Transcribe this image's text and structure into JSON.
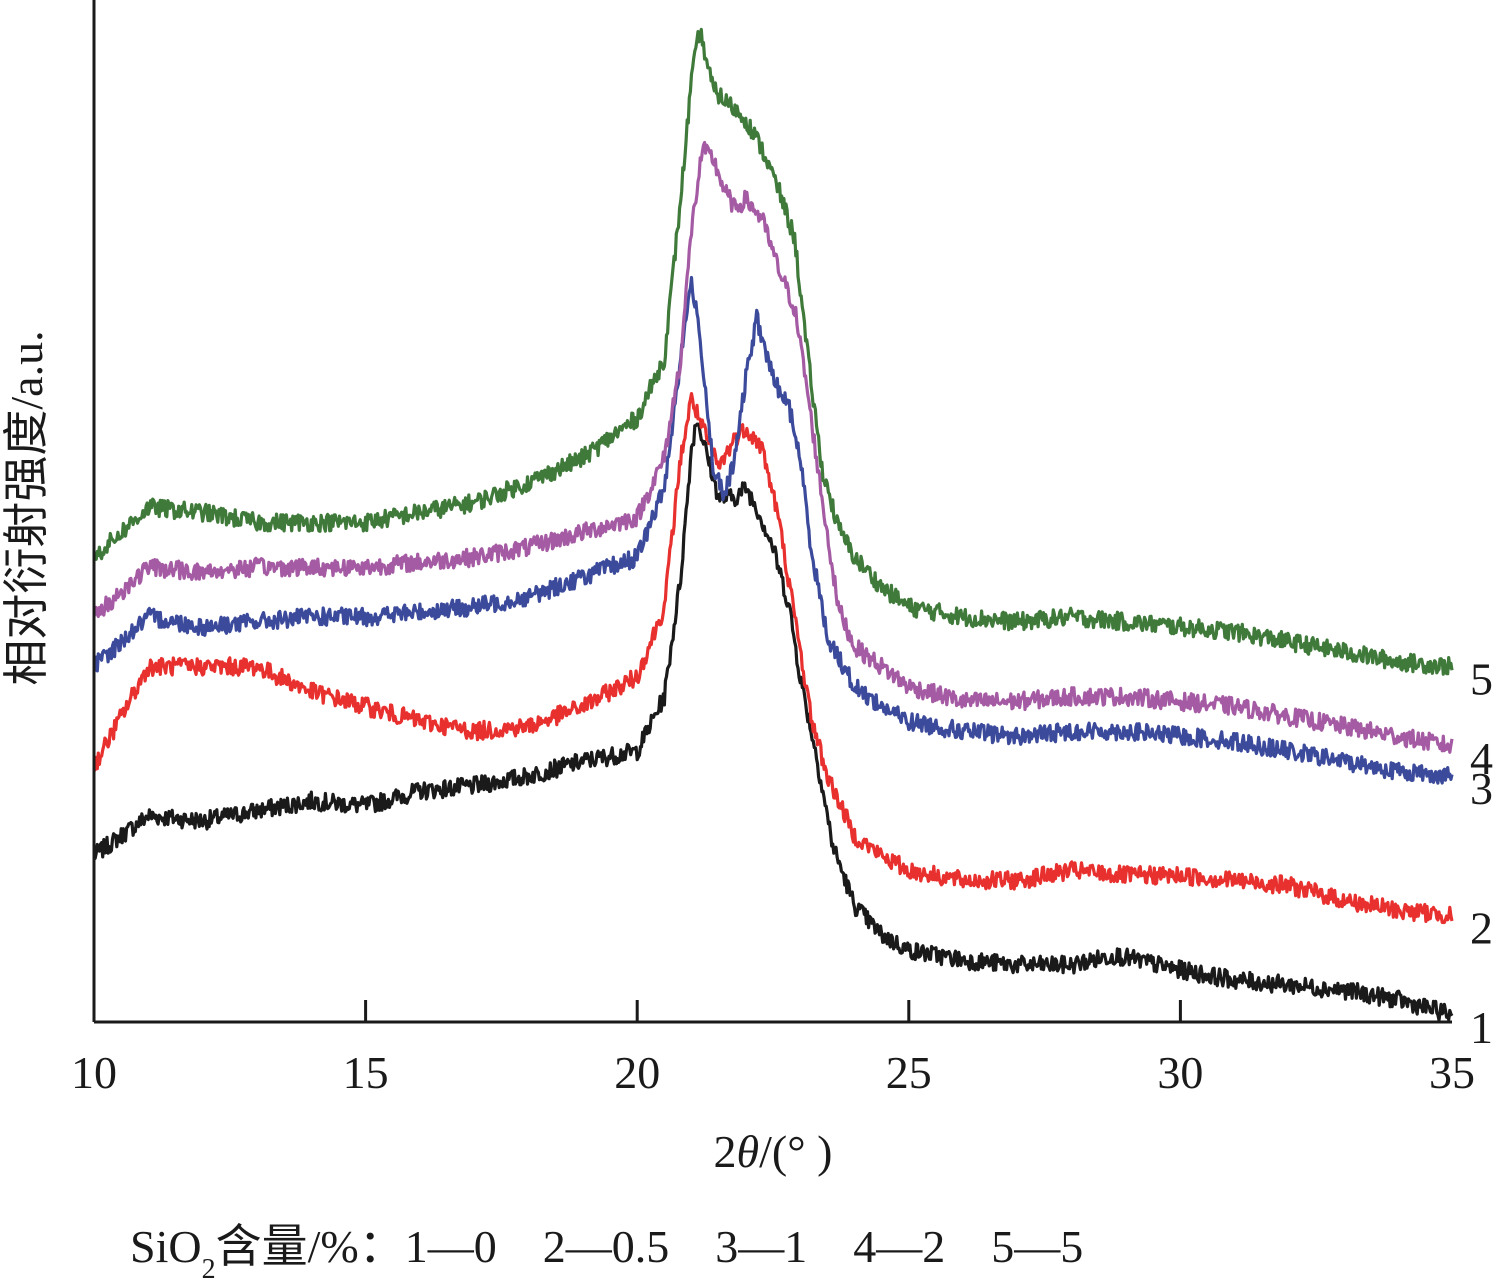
{
  "chart_data": {
    "type": "line",
    "xlabel_prefix": "2",
    "xlabel_theta": "θ",
    "xlabel_suffix": "/(°  )",
    "ylabel": "相对衍射强度/a.u.",
    "xlim": [
      10,
      35
    ],
    "x_ticks": [
      "10",
      "15",
      "20",
      "25",
      "30",
      "35"
    ],
    "caption": {
      "si": "SiO",
      "sub": "2",
      "rest": "含量/%：1—0　2—0.5　3—1　4—2　5—5"
    },
    "series": [
      {
        "name": "1",
        "color": "#1a1a1a",
        "points": [
          [
            10,
            0.12
          ],
          [
            11,
            0.16
          ],
          [
            12,
            0.155
          ],
          [
            13,
            0.165
          ],
          [
            14,
            0.175
          ],
          [
            15,
            0.17
          ],
          [
            16,
            0.185
          ],
          [
            17,
            0.19
          ],
          [
            18,
            0.2
          ],
          [
            19,
            0.215
          ],
          [
            20,
            0.225
          ],
          [
            20.5,
            0.28
          ],
          [
            20.8,
            0.4
          ],
          [
            21.0,
            0.53
          ],
          [
            21.1,
            0.56
          ],
          [
            21.3,
            0.52
          ],
          [
            21.5,
            0.48
          ],
          [
            21.8,
            0.48
          ],
          [
            22.0,
            0.49
          ],
          [
            22.2,
            0.47
          ],
          [
            22.5,
            0.43
          ],
          [
            22.8,
            0.37
          ],
          [
            23.0,
            0.3
          ],
          [
            23.3,
            0.22
          ],
          [
            23.6,
            0.13
          ],
          [
            24.0,
            0.07
          ],
          [
            24.5,
            0.04
          ],
          [
            25,
            0.025
          ],
          [
            26,
            0.015
          ],
          [
            27,
            0.01
          ],
          [
            28,
            0.01
          ],
          [
            28.8,
            0.02
          ],
          [
            30,
            0.005
          ],
          [
            31,
            -0.005
          ],
          [
            32,
            -0.01
          ],
          [
            33,
            -0.015
          ],
          [
            34,
            -0.025
          ],
          [
            35,
            -0.04
          ]
        ]
      },
      {
        "name": "2",
        "color": "#e8302e",
        "points": [
          [
            10,
            0.21
          ],
          [
            11,
            0.31
          ],
          [
            12,
            0.31
          ],
          [
            13,
            0.31
          ],
          [
            14,
            0.285
          ],
          [
            15,
            0.27
          ],
          [
            16,
            0.255
          ],
          [
            17,
            0.245
          ],
          [
            18,
            0.25
          ],
          [
            19,
            0.27
          ],
          [
            20,
            0.3
          ],
          [
            20.5,
            0.37
          ],
          [
            20.8,
            0.52
          ],
          [
            21.0,
            0.58
          ],
          [
            21.2,
            0.55
          ],
          [
            21.5,
            0.51
          ],
          [
            21.8,
            0.54
          ],
          [
            22.0,
            0.55
          ],
          [
            22.3,
            0.53
          ],
          [
            22.6,
            0.46
          ],
          [
            22.9,
            0.36
          ],
          [
            23.2,
            0.26
          ],
          [
            23.5,
            0.2
          ],
          [
            24.0,
            0.14
          ],
          [
            24.5,
            0.12
          ],
          [
            25,
            0.105
          ],
          [
            26,
            0.095
          ],
          [
            27,
            0.095
          ],
          [
            28,
            0.105
          ],
          [
            29,
            0.1
          ],
          [
            30,
            0.1
          ],
          [
            31,
            0.095
          ],
          [
            32,
            0.09
          ],
          [
            33,
            0.075
          ],
          [
            34,
            0.065
          ],
          [
            35,
            0.06
          ]
        ]
      },
      {
        "name": "3",
        "color": "#3c4a9c",
        "points": [
          [
            10,
            0.31
          ],
          [
            11,
            0.36
          ],
          [
            12,
            0.35
          ],
          [
            13,
            0.355
          ],
          [
            14,
            0.36
          ],
          [
            15,
            0.36
          ],
          [
            16,
            0.365
          ],
          [
            17,
            0.37
          ],
          [
            18,
            0.38
          ],
          [
            19,
            0.4
          ],
          [
            20,
            0.42
          ],
          [
            20.5,
            0.49
          ],
          [
            20.8,
            0.62
          ],
          [
            21.0,
            0.7
          ],
          [
            21.2,
            0.62
          ],
          [
            21.4,
            0.51
          ],
          [
            21.6,
            0.48
          ],
          [
            21.8,
            0.52
          ],
          [
            22.0,
            0.6
          ],
          [
            22.2,
            0.66
          ],
          [
            22.5,
            0.6
          ],
          [
            22.8,
            0.57
          ],
          [
            23.0,
            0.52
          ],
          [
            23.2,
            0.43
          ],
          [
            23.5,
            0.34
          ],
          [
            24.0,
            0.29
          ],
          [
            24.5,
            0.27
          ],
          [
            25,
            0.255
          ],
          [
            26,
            0.245
          ],
          [
            27,
            0.24
          ],
          [
            28,
            0.245
          ],
          [
            29,
            0.245
          ],
          [
            30,
            0.24
          ],
          [
            31,
            0.235
          ],
          [
            32,
            0.225
          ],
          [
            33,
            0.215
          ],
          [
            34,
            0.205
          ],
          [
            35,
            0.2
          ]
        ]
      },
      {
        "name": "4",
        "color": "#a55ba3",
        "points": [
          [
            10,
            0.36
          ],
          [
            11,
            0.41
          ],
          [
            12,
            0.405
          ],
          [
            13,
            0.41
          ],
          [
            14,
            0.41
          ],
          [
            15,
            0.41
          ],
          [
            16,
            0.415
          ],
          [
            17,
            0.42
          ],
          [
            18,
            0.43
          ],
          [
            19,
            0.445
          ],
          [
            20,
            0.46
          ],
          [
            20.5,
            0.52
          ],
          [
            20.8,
            0.62
          ],
          [
            21.0,
            0.75
          ],
          [
            21.2,
            0.83
          ],
          [
            21.4,
            0.82
          ],
          [
            21.6,
            0.79
          ],
          [
            21.8,
            0.77
          ],
          [
            22.0,
            0.78
          ],
          [
            22.3,
            0.76
          ],
          [
            22.6,
            0.71
          ],
          [
            22.9,
            0.67
          ],
          [
            23.1,
            0.6
          ],
          [
            23.4,
            0.48
          ],
          [
            23.7,
            0.37
          ],
          [
            24.0,
            0.33
          ],
          [
            24.5,
            0.31
          ],
          [
            25,
            0.29
          ],
          [
            26,
            0.275
          ],
          [
            27,
            0.275
          ],
          [
            28,
            0.28
          ],
          [
            29,
            0.28
          ],
          [
            30,
            0.275
          ],
          [
            31,
            0.27
          ],
          [
            32,
            0.26
          ],
          [
            33,
            0.25
          ],
          [
            34,
            0.24
          ],
          [
            35,
            0.23
          ]
        ]
      },
      {
        "name": "5",
        "color": "#3f7a3a",
        "points": [
          [
            10,
            0.42
          ],
          [
            11,
            0.47
          ],
          [
            12,
            0.465
          ],
          [
            13,
            0.455
          ],
          [
            14,
            0.455
          ],
          [
            15,
            0.455
          ],
          [
            16,
            0.465
          ],
          [
            17,
            0.475
          ],
          [
            18,
            0.495
          ],
          [
            19,
            0.52
          ],
          [
            20,
            0.56
          ],
          [
            20.5,
            0.62
          ],
          [
            20.8,
            0.78
          ],
          [
            21.0,
            0.9
          ],
          [
            21.15,
            0.95
          ],
          [
            21.4,
            0.89
          ],
          [
            21.6,
            0.88
          ],
          [
            21.8,
            0.87
          ],
          [
            22.0,
            0.86
          ],
          [
            22.3,
            0.83
          ],
          [
            22.6,
            0.79
          ],
          [
            22.9,
            0.74
          ],
          [
            23.1,
            0.64
          ],
          [
            23.4,
            0.51
          ],
          [
            23.7,
            0.45
          ],
          [
            24.0,
            0.42
          ],
          [
            24.5,
            0.39
          ],
          [
            25,
            0.37
          ],
          [
            26,
            0.36
          ],
          [
            27,
            0.355
          ],
          [
            28,
            0.36
          ],
          [
            29,
            0.355
          ],
          [
            30,
            0.35
          ],
          [
            31,
            0.345
          ],
          [
            32,
            0.335
          ],
          [
            33,
            0.325
          ],
          [
            34,
            0.315
          ],
          [
            35,
            0.31
          ]
        ]
      }
    ]
  }
}
